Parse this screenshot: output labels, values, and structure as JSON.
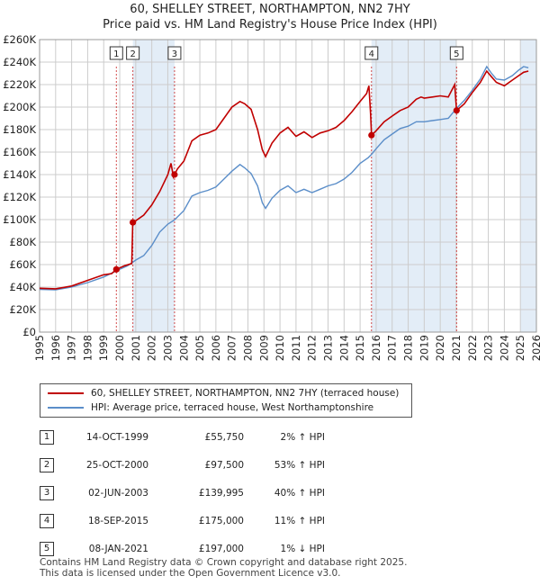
{
  "title_line1": "60, SHELLEY STREET, NORTHAMPTON, NN2 7HY",
  "title_line2": "Price paid vs. HM Land Registry's House Price Index (HPI)",
  "colors": {
    "price": "#c00000",
    "hpi": "#5b8ec9",
    "shade": "#dce8f5",
    "grid": "#cccccc",
    "vline": "#c00000"
  },
  "chart_data": {
    "type": "line",
    "xlim": [
      1995.0,
      2026.0
    ],
    "ylim": [
      0,
      260000
    ],
    "x_ticks": [
      1995,
      1996,
      1997,
      1998,
      1999,
      2000,
      2001,
      2002,
      2003,
      2004,
      2005,
      2006,
      2007,
      2008,
      2009,
      2010,
      2011,
      2012,
      2013,
      2014,
      2015,
      2016,
      2017,
      2018,
      2019,
      2020,
      2021,
      2022,
      2023,
      2024,
      2025,
      2026
    ],
    "y_ticks": [
      0,
      20000,
      40000,
      60000,
      80000,
      100000,
      120000,
      140000,
      160000,
      180000,
      200000,
      220000,
      240000,
      260000
    ],
    "y_tick_labels": [
      "£0",
      "£20K",
      "£40K",
      "£60K",
      "£80K",
      "£100K",
      "£120K",
      "£140K",
      "£160K",
      "£180K",
      "£200K",
      "£220K",
      "£240K",
      "£260K"
    ],
    "shaded_ranges": [
      [
        2000.82,
        2003.42
      ],
      [
        2015.71,
        2021.02
      ],
      [
        2025.0,
        2026.0
      ]
    ],
    "series": [
      {
        "name": "60, SHELLEY STREET, NORTHAMPTON, NN2 7HY (terraced house)",
        "points": [
          [
            1995.0,
            39000
          ],
          [
            1996.0,
            38500
          ],
          [
            1997.0,
            41000
          ],
          [
            1998.0,
            46000
          ],
          [
            1999.0,
            51000
          ],
          [
            1999.5,
            52000
          ],
          [
            1999.79,
            55750
          ],
          [
            2000.3,
            59000
          ],
          [
            2000.75,
            61000
          ],
          [
            2000.81,
            97500
          ],
          [
            2001.0,
            99000
          ],
          [
            2001.5,
            104000
          ],
          [
            2002.0,
            113000
          ],
          [
            2002.5,
            125000
          ],
          [
            2003.0,
            140000
          ],
          [
            2003.2,
            150000
          ],
          [
            2003.35,
            138000
          ],
          [
            2003.42,
            139995
          ],
          [
            2003.6,
            145000
          ],
          [
            2004.0,
            152000
          ],
          [
            2004.5,
            170000
          ],
          [
            2005.0,
            175000
          ],
          [
            2005.5,
            177000
          ],
          [
            2006.0,
            180000
          ],
          [
            2006.5,
            190000
          ],
          [
            2007.0,
            200000
          ],
          [
            2007.5,
            205000
          ],
          [
            2007.8,
            203000
          ],
          [
            2008.2,
            198000
          ],
          [
            2008.6,
            180000
          ],
          [
            2008.9,
            162000
          ],
          [
            2009.1,
            156000
          ],
          [
            2009.5,
            168000
          ],
          [
            2010.0,
            177000
          ],
          [
            2010.5,
            182000
          ],
          [
            2011.0,
            174000
          ],
          [
            2011.5,
            178000
          ],
          [
            2012.0,
            173000
          ],
          [
            2012.5,
            177000
          ],
          [
            2013.0,
            179000
          ],
          [
            2013.5,
            182000
          ],
          [
            2014.0,
            188000
          ],
          [
            2014.5,
            196000
          ],
          [
            2015.0,
            205000
          ],
          [
            2015.4,
            212000
          ],
          [
            2015.55,
            219000
          ],
          [
            2015.65,
            195000
          ],
          [
            2015.71,
            175000
          ],
          [
            2016.0,
            179000
          ],
          [
            2016.5,
            187000
          ],
          [
            2017.0,
            192000
          ],
          [
            2017.5,
            197000
          ],
          [
            2018.0,
            200000
          ],
          [
            2018.5,
            207000
          ],
          [
            2018.8,
            209000
          ],
          [
            2019.0,
            208000
          ],
          [
            2019.5,
            209000
          ],
          [
            2020.0,
            210000
          ],
          [
            2020.5,
            209000
          ],
          [
            2020.9,
            220000
          ],
          [
            2021.02,
            197000
          ],
          [
            2021.5,
            203000
          ],
          [
            2022.0,
            213000
          ],
          [
            2022.5,
            222000
          ],
          [
            2022.9,
            232000
          ],
          [
            2023.2,
            227000
          ],
          [
            2023.5,
            222000
          ],
          [
            2024.0,
            219000
          ],
          [
            2024.5,
            224000
          ],
          [
            2024.9,
            228000
          ],
          [
            2025.2,
            231000
          ],
          [
            2025.5,
            232000
          ]
        ]
      },
      {
        "name": "HPI: Average price, terraced house, West Northamptonshire",
        "points": [
          [
            1995.0,
            38000
          ],
          [
            1996.0,
            37500
          ],
          [
            1997.0,
            40000
          ],
          [
            1998.0,
            44000
          ],
          [
            1999.0,
            49000
          ],
          [
            1999.79,
            54500
          ],
          [
            2000.5,
            59000
          ],
          [
            2001.0,
            64000
          ],
          [
            2001.5,
            68000
          ],
          [
            2002.0,
            77000
          ],
          [
            2002.5,
            89000
          ],
          [
            2003.0,
            96000
          ],
          [
            2003.42,
            99800
          ],
          [
            2004.0,
            108000
          ],
          [
            2004.5,
            121000
          ],
          [
            2005.0,
            124000
          ],
          [
            2005.5,
            126000
          ],
          [
            2006.0,
            129000
          ],
          [
            2006.5,
            136000
          ],
          [
            2007.0,
            143000
          ],
          [
            2007.5,
            149000
          ],
          [
            2007.8,
            146000
          ],
          [
            2008.2,
            141000
          ],
          [
            2008.6,
            130000
          ],
          [
            2008.9,
            115000
          ],
          [
            2009.1,
            110000
          ],
          [
            2009.5,
            119000
          ],
          [
            2010.0,
            126000
          ],
          [
            2010.5,
            130000
          ],
          [
            2011.0,
            124000
          ],
          [
            2011.5,
            127000
          ],
          [
            2012.0,
            124000
          ],
          [
            2012.5,
            127000
          ],
          [
            2013.0,
            130000
          ],
          [
            2013.5,
            132000
          ],
          [
            2014.0,
            136000
          ],
          [
            2014.5,
            142000
          ],
          [
            2015.0,
            150000
          ],
          [
            2015.5,
            155000
          ],
          [
            2015.71,
            158000
          ],
          [
            2016.0,
            163000
          ],
          [
            2016.5,
            171000
          ],
          [
            2017.0,
            176000
          ],
          [
            2017.5,
            181000
          ],
          [
            2018.0,
            183000
          ],
          [
            2018.5,
            187000
          ],
          [
            2019.0,
            187000
          ],
          [
            2019.5,
            188000
          ],
          [
            2020.0,
            189000
          ],
          [
            2020.5,
            190000
          ],
          [
            2021.02,
            199000
          ],
          [
            2021.5,
            206000
          ],
          [
            2022.0,
            215000
          ],
          [
            2022.5,
            225000
          ],
          [
            2022.9,
            236000
          ],
          [
            2023.2,
            230000
          ],
          [
            2023.5,
            225000
          ],
          [
            2024.0,
            224000
          ],
          [
            2024.5,
            228000
          ],
          [
            2024.9,
            233000
          ],
          [
            2025.2,
            236000
          ],
          [
            2025.5,
            235000
          ]
        ]
      }
    ],
    "markers": [
      {
        "label": "1",
        "x": 1999.79,
        "y": 55750
      },
      {
        "label": "2",
        "x": 2000.82,
        "y": 97500
      },
      {
        "label": "3",
        "x": 2003.42,
        "y": 139995
      },
      {
        "label": "4",
        "x": 2015.71,
        "y": 175000
      },
      {
        "label": "5",
        "x": 2021.02,
        "y": 197000
      }
    ]
  },
  "legend": {
    "price_label": "60, SHELLEY STREET, NORTHAMPTON, NN2 7HY (terraced house)",
    "hpi_label": "HPI: Average price, terraced house, West Northamptonshire"
  },
  "sales": [
    {
      "num": "1",
      "date": "14-OCT-1999",
      "price": "£55,750",
      "hpi": "2% ↑ HPI"
    },
    {
      "num": "2",
      "date": "25-OCT-2000",
      "price": "£97,500",
      "hpi": "53% ↑ HPI"
    },
    {
      "num": "3",
      "date": "02-JUN-2003",
      "price": "£139,995",
      "hpi": "40% ↑ HPI"
    },
    {
      "num": "4",
      "date": "18-SEP-2015",
      "price": "£175,000",
      "hpi": "11% ↑ HPI"
    },
    {
      "num": "5",
      "date": "08-JAN-2021",
      "price": "£197,000",
      "hpi": "1% ↓ HPI"
    }
  ],
  "footer_line1": "Contains HM Land Registry data © Crown copyright and database right 2025.",
  "footer_line2": "This data is licensed under the Open Government Licence v3.0."
}
